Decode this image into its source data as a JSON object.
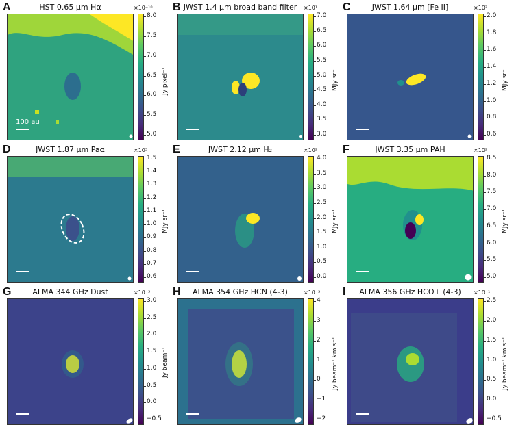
{
  "panels": [
    {
      "letter": "A",
      "title": "HST 0.65 µm Hα",
      "multiplier": "×10⁻¹⁰",
      "cbar_label": "Jy pixel⁻¹",
      "ticks": [
        "8.0",
        "7.5",
        "7.0",
        "6.5",
        "6.0",
        "5.5",
        "5.0"
      ],
      "scale_text": "100 au"
    },
    {
      "letter": "B",
      "title": "JWST 1.4 µm broad band filter",
      "multiplier": "×10¹",
      "cbar_label": "MJy sr⁻¹",
      "ticks": [
        "7.0",
        "6.5",
        "6.0",
        "5.5",
        "5.0",
        "4.5",
        "4.0",
        "3.5",
        "3.0"
      ]
    },
    {
      "letter": "C",
      "title": "JWST 1.64 µm [Fe II]",
      "multiplier": "×10²",
      "cbar_label": "MJy sr⁻¹",
      "ticks": [
        "2.0",
        "1.8",
        "1.6",
        "1.4",
        "1.2",
        "1.0",
        "0.8",
        "0.6"
      ]
    },
    {
      "letter": "D",
      "title": "JWST 1.87 µm Paα",
      "multiplier": "×10³",
      "cbar_label": "MJy sr⁻¹",
      "ticks": [
        "1.5",
        "1.4",
        "1.3",
        "1.2",
        "1.1",
        "1.0",
        "0.9",
        "0.8",
        "0.7",
        "0.6"
      ]
    },
    {
      "letter": "E",
      "title": "JWST 2.12 µm H₂",
      "multiplier": "×10²",
      "cbar_label": "MJy sr⁻¹",
      "ticks": [
        "4.0",
        "3.5",
        "3.0",
        "2.5",
        "2.0",
        "1.5",
        "1.0",
        "0.5",
        "0.0"
      ]
    },
    {
      "letter": "F",
      "title": "JWST 3.35 µm PAH",
      "multiplier": "×10²",
      "cbar_label": "MJy sr⁻¹",
      "ticks": [
        "8.5",
        "8.0",
        "7.5",
        "7.0",
        "6.5",
        "6.0",
        "5.5",
        "5.0"
      ]
    },
    {
      "letter": "G",
      "title": "ALMA 344 GHz Dust",
      "multiplier": "×10⁻³",
      "cbar_label": "Jy beam⁻¹",
      "ticks": [
        "3.0",
        "2.5",
        "2.0",
        "1.5",
        "1.0",
        "0.5",
        "0.0",
        "−0.5"
      ]
    },
    {
      "letter": "H",
      "title": "ALMA 354 GHz HCN (4-3)",
      "multiplier": "×10⁻²",
      "cbar_label": "Jy beam⁻¹ km s⁻¹",
      "ticks": [
        "4",
        "3",
        "2",
        "1",
        "0",
        "−1",
        "−2"
      ]
    },
    {
      "letter": "I",
      "title": "ALMA 356 GHz HCO+ (4-3)",
      "multiplier": "×10⁻¹",
      "cbar_label": "Jy beam⁻¹ km s⁻¹",
      "ticks": [
        "2.5",
        "2.0",
        "1.5",
        "1.0",
        "0.5",
        "0.0",
        "−0.5"
      ]
    }
  ],
  "colors": {
    "low": "#440154",
    "mid": "#21908d",
    "high": "#fde725",
    "scalebar": "#ffffff",
    "ellipse": "#ffffff"
  }
}
